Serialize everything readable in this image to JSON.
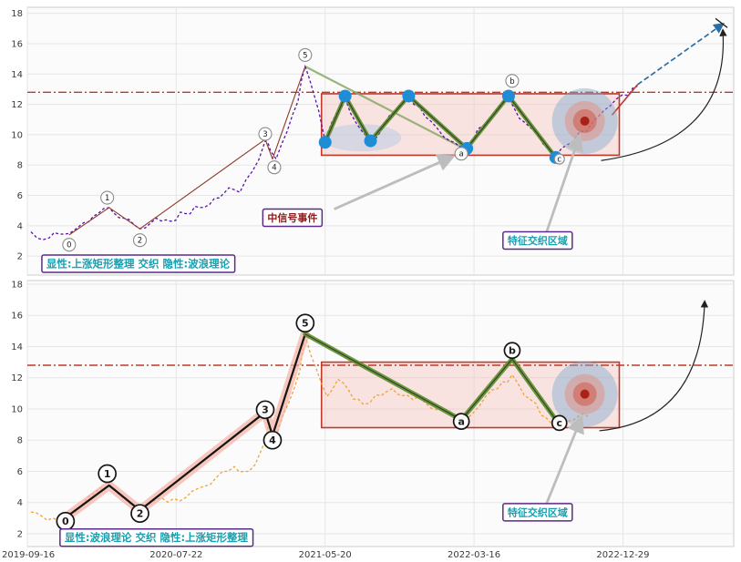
{
  "colors": {
    "grid": "#e6e6e6",
    "panel_bg": "#fbfbfb",
    "panel_border": "#cccccc",
    "hline": "#c0392b",
    "box_stroke": "#c0392b",
    "box_fill": "#f5c2ba",
    "price_top": "#5a11a8",
    "price_bottom": "#f0a232",
    "impulse_top": "#8b3a2a",
    "impulse_bottom": "#141414",
    "band": "#f5b0a4",
    "zigzag": "#5d8f2f",
    "dot": "#1f8dd6",
    "trend_green": "#8aa868",
    "forecast": "#2e6da4",
    "curve": "#222222",
    "arrow_gray": "#bdbdbd",
    "label_border": "#5b2a86",
    "label_teal": "#18a0b0",
    "label_red": "#8b1a1a",
    "target_outer": "#7ea8cf",
    "target_mid": "#e2907f",
    "target_inner": "#cf5f52",
    "target_core": "#a61c12",
    "axis_text": "#3a3a3a"
  },
  "x_axis": {
    "range": [
      2019.71,
      2023.6
    ],
    "ticks": [
      2019.71,
      2020.53,
      2021.35,
      2022.17,
      2022.99
    ],
    "labels": [
      "2019-09-16",
      "2020-07-22",
      "2021-05-20",
      "2022-03-16",
      "2022-12-29"
    ]
  },
  "chart_data": [
    {
      "type": "line",
      "name": "explicit-rectangle-hidden-wave",
      "ylim": [
        0.75,
        18.4
      ],
      "yticks": [
        2,
        4,
        6,
        8,
        10,
        12,
        14,
        16,
        18
      ],
      "hline": 12.8,
      "box": {
        "x0": 2021.33,
        "x1": 2022.97,
        "y0": 8.65,
        "y1": 12.7
      },
      "price": [
        [
          2019.73,
          3.6
        ],
        [
          2019.83,
          3.2
        ],
        [
          2019.94,
          3.5
        ],
        [
          2020.02,
          4.2
        ],
        [
          2020.1,
          4.8
        ],
        [
          2020.16,
          5.2
        ],
        [
          2020.24,
          4.5
        ],
        [
          2020.33,
          3.8
        ],
        [
          2020.42,
          4.5
        ],
        [
          2020.5,
          4.3
        ],
        [
          2020.58,
          4.8
        ],
        [
          2020.66,
          5.2
        ],
        [
          2020.74,
          5.8
        ],
        [
          2020.82,
          6.5
        ],
        [
          2020.88,
          6.2
        ],
        [
          2020.95,
          7.6
        ],
        [
          2021.02,
          9.6
        ],
        [
          2021.05,
          8.9
        ],
        [
          2021.08,
          8.4
        ],
        [
          2021.14,
          10.2
        ],
        [
          2021.2,
          12.2
        ],
        [
          2021.24,
          14.5
        ],
        [
          2021.28,
          13.0
        ],
        [
          2021.35,
          9.6
        ],
        [
          2021.42,
          11.6
        ],
        [
          2021.46,
          12.4
        ],
        [
          2021.52,
          10.8
        ],
        [
          2021.6,
          9.6
        ],
        [
          2021.68,
          10.8
        ],
        [
          2021.76,
          11.9
        ],
        [
          2021.81,
          12.4
        ],
        [
          2021.9,
          11.2
        ],
        [
          2022.0,
          9.9
        ],
        [
          2022.13,
          9.2
        ],
        [
          2022.22,
          10.6
        ],
        [
          2022.3,
          11.8
        ],
        [
          2022.36,
          12.4
        ],
        [
          2022.45,
          10.8
        ],
        [
          2022.55,
          9.4
        ],
        [
          2022.62,
          8.6
        ],
        [
          2022.72,
          9.6
        ],
        [
          2022.82,
          10.8
        ],
        [
          2022.92,
          11.9
        ],
        [
          2023.02,
          12.6
        ],
        [
          2023.07,
          13.2
        ]
      ],
      "impulse": [
        [
          2019.94,
          3.4
        ],
        [
          2020.16,
          5.2
        ],
        [
          2020.33,
          3.8
        ],
        [
          2021.02,
          9.7
        ],
        [
          2021.06,
          8.4
        ],
        [
          2021.24,
          14.5
        ]
      ],
      "band": false,
      "trend": [
        [
          2021.24,
          14.5
        ],
        [
          2022.13,
          9.0
        ]
      ],
      "zigzag": {
        "points": [
          [
            2021.35,
            9.5
          ],
          [
            2021.46,
            12.55
          ],
          [
            2021.6,
            9.6
          ],
          [
            2021.81,
            12.55
          ],
          [
            2022.13,
            9.1
          ],
          [
            2022.36,
            12.55
          ],
          [
            2022.62,
            8.5
          ]
        ],
        "dots": true,
        "width": 4.5
      },
      "ellipse": {
        "cx": 2021.55,
        "cy": 9.8,
        "rx": 0.22,
        "ry": 0.9
      },
      "red_tail": [
        [
          2022.93,
          11.3
        ],
        [
          2023.07,
          13.3
        ]
      ],
      "forecast": [
        [
          2023.07,
          13.3
        ],
        [
          2023.54,
          17.3
        ]
      ],
      "curve": {
        "start": [
          2022.87,
          8.3
        ],
        "ctrl": [
          2023.58,
          9.5
        ],
        "end": [
          2023.54,
          16.9
        ]
      },
      "target": {
        "x": 2022.78,
        "y": 10.9
      },
      "waves": [
        {
          "t": "0",
          "x": 2019.94,
          "y": 2.75
        },
        {
          "t": "1",
          "x": 2020.15,
          "y": 5.85
        },
        {
          "t": "2",
          "x": 2020.33,
          "y": 3.05
        },
        {
          "t": "3",
          "x": 2021.02,
          "y": 10.05
        },
        {
          "t": "4",
          "x": 2021.07,
          "y": 7.85
        },
        {
          "t": "5",
          "x": 2021.24,
          "y": 15.25
        },
        {
          "t": "a",
          "x": 2022.1,
          "y": 8.75
        },
        {
          "t": "b",
          "x": 2022.38,
          "y": 13.55
        },
        {
          "t": "c",
          "x": 2022.64,
          "y": 8.4,
          "r": 5.5
        }
      ],
      "annotations": [
        {
          "text": "中信号事件",
          "x": 2021.17,
          "y": 4.5,
          "color": "red",
          "arrow_from": [
            2021.4,
            5.1
          ],
          "arrow_to": [
            2022.05,
            8.55
          ]
        },
        {
          "text": "特征交织区域",
          "x": 2022.52,
          "y": 3.0,
          "color": "teal",
          "arrow_from": [
            2022.57,
            3.6
          ],
          "arrow_to": [
            2022.75,
            9.9
          ]
        }
      ],
      "caption": {
        "text": "显性:上涨矩形整理 交织 隐性:波浪理论",
        "x": 2020.32,
        "y": 1.5
      }
    },
    {
      "type": "line",
      "name": "explicit-wave-hidden-rectangle",
      "ylim": [
        1.18,
        18.23
      ],
      "yticks": [
        2,
        4,
        6,
        8,
        10,
        12,
        14,
        16,
        18
      ],
      "hline": 12.8,
      "box": {
        "x0": 2021.33,
        "x1": 2022.97,
        "y0": 8.8,
        "y1": 13.0
      },
      "price": [
        [
          2019.73,
          3.4
        ],
        [
          2019.85,
          3.0
        ],
        [
          2019.94,
          3.3
        ],
        [
          2020.05,
          4.4
        ],
        [
          2020.16,
          5.0
        ],
        [
          2020.25,
          4.3
        ],
        [
          2020.33,
          3.6
        ],
        [
          2020.45,
          4.3
        ],
        [
          2020.55,
          4.1
        ],
        [
          2020.65,
          4.9
        ],
        [
          2020.75,
          5.6
        ],
        [
          2020.85,
          6.3
        ],
        [
          2020.93,
          6.0
        ],
        [
          2021.0,
          7.4
        ],
        [
          2021.04,
          9.0
        ],
        [
          2021.08,
          8.2
        ],
        [
          2021.15,
          10.4
        ],
        [
          2021.21,
          12.4
        ],
        [
          2021.24,
          14.7
        ],
        [
          2021.3,
          12.6
        ],
        [
          2021.36,
          10.8
        ],
        [
          2021.42,
          11.9
        ],
        [
          2021.48,
          11.2
        ],
        [
          2021.56,
          10.3
        ],
        [
          2021.63,
          10.9
        ],
        [
          2021.72,
          11.3
        ],
        [
          2021.8,
          10.9
        ],
        [
          2021.9,
          10.4
        ],
        [
          2022.0,
          10.0
        ],
        [
          2022.1,
          9.3
        ],
        [
          2022.2,
          10.2
        ],
        [
          2022.3,
          11.3
        ],
        [
          2022.38,
          12.2
        ],
        [
          2022.48,
          10.6
        ],
        [
          2022.57,
          9.4
        ],
        [
          2022.64,
          8.8
        ],
        [
          2022.72,
          9.3
        ],
        [
          2022.8,
          9.5
        ]
      ],
      "impulse": [
        [
          2019.94,
          3.2
        ],
        [
          2020.16,
          5.1
        ],
        [
          2020.33,
          3.5
        ],
        [
          2021.02,
          9.8
        ],
        [
          2021.06,
          8.3
        ],
        [
          2021.24,
          14.8
        ]
      ],
      "band": true,
      "zigzag": {
        "points": [
          [
            2021.24,
            14.8
          ],
          [
            2022.1,
            9.3
          ],
          [
            2022.38,
            13.2
          ],
          [
            2022.64,
            9.0
          ]
        ],
        "dots": false,
        "width": 5
      },
      "curve": {
        "start": [
          2022.86,
          8.6
        ],
        "ctrl": [
          2023.42,
          9.2
        ],
        "end": [
          2023.44,
          16.9
        ]
      },
      "target": {
        "x": 2022.78,
        "y": 10.95
      },
      "waves": [
        {
          "t": "0",
          "x": 2019.92,
          "y": 2.8
        },
        {
          "t": "1",
          "x": 2020.15,
          "y": 5.85
        },
        {
          "t": "2",
          "x": 2020.33,
          "y": 3.3
        },
        {
          "t": "3",
          "x": 2021.02,
          "y": 9.95
        },
        {
          "t": "4",
          "x": 2021.06,
          "y": 8.0
        },
        {
          "t": "5",
          "x": 2021.24,
          "y": 15.5
        },
        {
          "t": "a",
          "x": 2022.1,
          "y": 9.2,
          "r": 8.5
        },
        {
          "t": "b",
          "x": 2022.38,
          "y": 13.75,
          "r": 8.5
        },
        {
          "t": "c",
          "x": 2022.64,
          "y": 9.1,
          "r": 8
        }
      ],
      "annotations": [
        {
          "text": "特征交织区域",
          "x": 2022.52,
          "y": 3.35,
          "color": "teal",
          "arrow_from": [
            2022.57,
            3.95
          ],
          "arrow_to": [
            2022.76,
            9.4
          ]
        }
      ],
      "caption": {
        "text": "显性:波浪理论 交织 隐性:上涨矩形整理",
        "x": 2020.42,
        "y": 1.75
      }
    }
  ]
}
